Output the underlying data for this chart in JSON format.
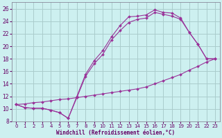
{
  "xlabel": "Windchill (Refroidissement éolien,°C)",
  "background_color": "#cdf0f0",
  "grid_color": "#aacccc",
  "line_color": "#993399",
  "xlim": [
    -0.5,
    23.5
  ],
  "ylim": [
    8,
    27
  ],
  "yticks": [
    8,
    10,
    12,
    14,
    16,
    18,
    20,
    22,
    24,
    26
  ],
  "xticks": [
    0,
    1,
    2,
    3,
    4,
    5,
    6,
    7,
    8,
    9,
    10,
    11,
    12,
    13,
    14,
    15,
    16,
    17,
    18,
    19,
    20,
    21,
    22,
    23
  ],
  "curve1_x": [
    0,
    1,
    2,
    3,
    4,
    5,
    6,
    7,
    8,
    9,
    10,
    11,
    12,
    13,
    14,
    15,
    16,
    17,
    18,
    19,
    20,
    21,
    22,
    23
  ],
  "curve1_y": [
    10.7,
    10.2,
    10.1,
    10.1,
    9.8,
    9.4,
    8.5,
    12.0,
    15.5,
    17.7,
    19.3,
    21.5,
    23.3,
    24.7,
    24.8,
    25.0,
    25.8,
    25.4,
    25.3,
    24.5,
    22.2,
    20.3,
    18.0,
    18.0
  ],
  "curve2_x": [
    0,
    1,
    2,
    3,
    4,
    5,
    6,
    7,
    8,
    9,
    10,
    11,
    12,
    13,
    14,
    15,
    16,
    17,
    18,
    19,
    20,
    21,
    22,
    23
  ],
  "curve2_y": [
    10.7,
    10.2,
    10.1,
    10.1,
    9.8,
    9.4,
    8.5,
    11.8,
    15.2,
    17.2,
    18.7,
    21.0,
    22.5,
    23.8,
    24.3,
    24.5,
    25.4,
    25.1,
    24.8,
    24.3,
    22.2,
    20.3,
    18.0,
    18.0
  ],
  "curve3_x": [
    0,
    1,
    2,
    3,
    4,
    5,
    6,
    7,
    8,
    9,
    10,
    11,
    12,
    13,
    14,
    15,
    16,
    17,
    18,
    19,
    20,
    21,
    22,
    23
  ],
  "curve3_y": [
    10.7,
    10.8,
    11.0,
    11.1,
    11.3,
    11.5,
    11.6,
    11.8,
    12.0,
    12.2,
    12.4,
    12.6,
    12.8,
    13.0,
    13.2,
    13.5,
    14.0,
    14.5,
    15.0,
    15.5,
    16.2,
    16.8,
    17.5,
    18.0
  ],
  "marker": "D",
  "markersize": 2.0
}
